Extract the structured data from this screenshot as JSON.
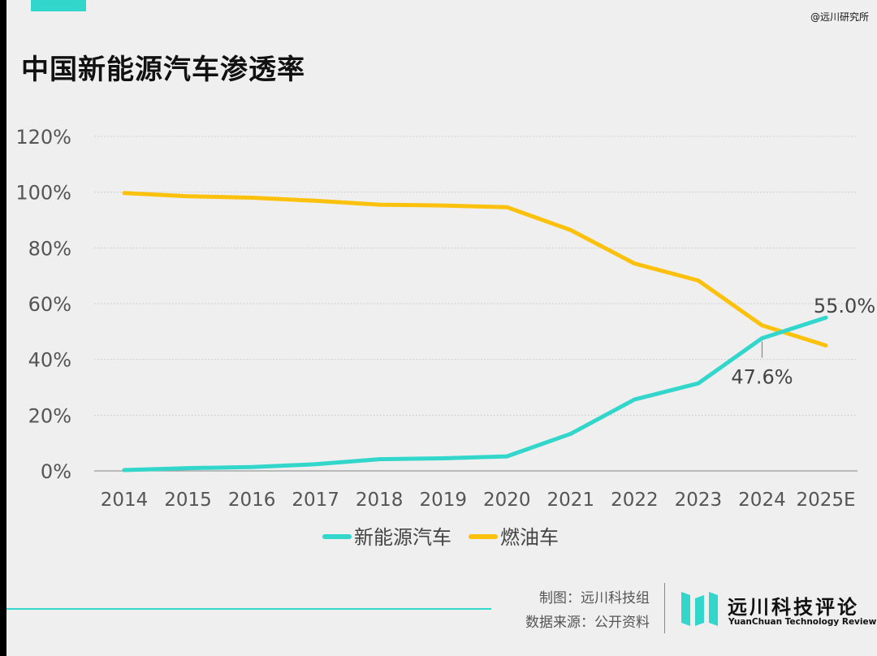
{
  "watermark": "@远川研究所",
  "title": "中国新能源汽车渗透率",
  "credits": {
    "made_by": "制图：远川科技组",
    "source": "数据来源：公开资料"
  },
  "logo": {
    "name_cn": "远川科技评论",
    "name_en": "YuanChuan Technology Review"
  },
  "colors": {
    "accent": "#33d6cb",
    "nev": "#33d6cb",
    "ice": "#fbc10c"
  },
  "chart_data": {
    "type": "line",
    "title": "中国新能源汽车渗透率",
    "categories": [
      "2014",
      "2015",
      "2016",
      "2017",
      "2018",
      "2019",
      "2020",
      "2021",
      "2022",
      "2023",
      "2024",
      "2025E"
    ],
    "y_ticks": [
      "0%",
      "20%",
      "40%",
      "60%",
      "80%",
      "100%",
      "120%"
    ],
    "ylim": [
      0,
      120
    ],
    "unit": "%",
    "grid": true,
    "legend_position": "bottom",
    "series": [
      {
        "name": "新能源汽车",
        "color": "#33d6cb",
        "values": [
          0.3,
          1.0,
          1.4,
          2.4,
          4.2,
          4.5,
          5.2,
          13.3,
          25.6,
          31.4,
          47.6,
          55.0
        ]
      },
      {
        "name": "燃油车",
        "color": "#fbc10c",
        "values": [
          99.7,
          98.5,
          98.0,
          96.9,
          95.5,
          95.2,
          94.6,
          86.4,
          74.4,
          68.3,
          52.2,
          45.0
        ]
      }
    ],
    "annotations": [
      {
        "series": "新能源汽车",
        "category": "2024",
        "label": "47.6%"
      },
      {
        "series": "新能源汽车",
        "category": "2025E",
        "label": "55.0%"
      }
    ]
  }
}
